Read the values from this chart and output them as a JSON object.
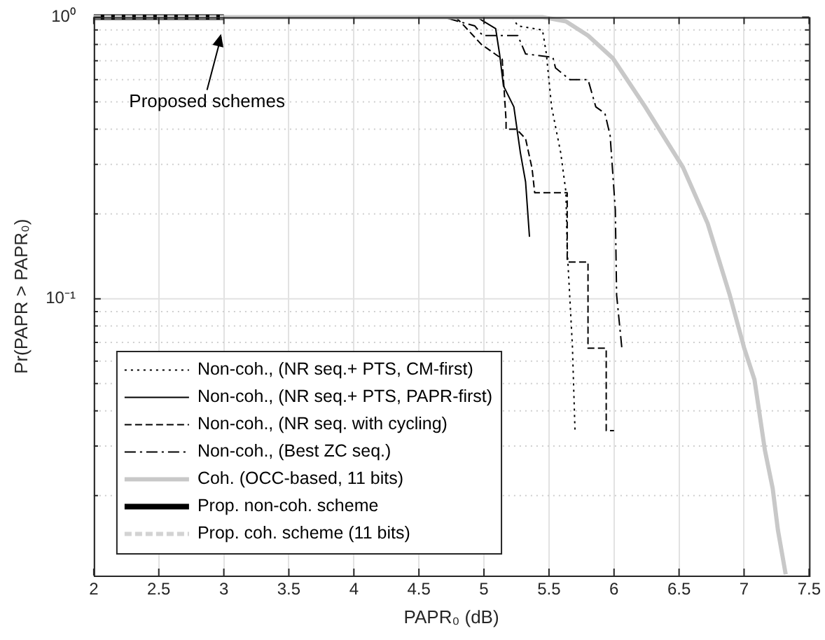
{
  "chart_data": {
    "type": "line",
    "xlabel": "PAPR₀ (dB)",
    "ylabel": "Pr(PAPR > PAPR₀)",
    "log": "y",
    "grid": true,
    "legend": "bottom left",
    "marker": "none",
    "xlim": [
      2,
      7.5
    ],
    "xticks": [
      2,
      2.5,
      3,
      3.5,
      4,
      4.5,
      5,
      5.5,
      6,
      6.5,
      7,
      7.5
    ],
    "ylim": [
      0.0104,
      1
    ],
    "yticks": [
      {
        "value": 0.02,
        "label": null
      },
      {
        "value": 0.03,
        "label": null
      },
      {
        "value": 0.04,
        "label": null
      },
      {
        "value": 0.05,
        "label": null
      },
      {
        "value": 0.06,
        "label": null
      },
      {
        "value": 0.07,
        "label": null
      },
      {
        "value": 0.08,
        "label": null
      },
      {
        "value": 0.09,
        "label": null
      },
      {
        "value": 0.1,
        "label": "10⁻¹"
      },
      {
        "value": 0.2,
        "label": null
      },
      {
        "value": 0.3,
        "label": null
      },
      {
        "value": 0.4,
        "label": null
      },
      {
        "value": 0.5,
        "label": null
      },
      {
        "value": 0.6,
        "label": null
      },
      {
        "value": 0.7,
        "label": null
      },
      {
        "value": 0.8,
        "label": null
      },
      {
        "value": 0.9,
        "label": null
      },
      {
        "value": 1,
        "label": "10⁰"
      }
    ],
    "annotations": [
      "Proposed schemes"
    ],
    "series": [
      {
        "name": "Non-coh., (NR seq.+ PTS, CM-first)",
        "color": "#000000",
        "line_style": "dotted",
        "x": [
          5.22,
          5.26,
          5.45,
          5.48,
          5.52,
          5.59,
          5.63,
          5.64,
          5.68,
          5.7
        ],
        "values": [
          1,
          0.93,
          0.9,
          0.74,
          0.48,
          0.33,
          0.24,
          0.15,
          0.068,
          0.034
        ]
      },
      {
        "name": "Non-coh., (NR seq.+ PTS, PAPR-first)",
        "color": "#000000",
        "line_style": "solid",
        "x": [
          4.95,
          4.99,
          5.09,
          5.12,
          5.15,
          5.23,
          5.28,
          5.32,
          5.35
        ],
        "values": [
          1,
          0.97,
          0.91,
          0.74,
          0.57,
          0.48,
          0.33,
          0.26,
          0.166
        ]
      },
      {
        "name": "Non-coh., (NR seq. with cycling)",
        "color": "#000000",
        "line_style": "dashed",
        "x": [
          4.78,
          4.83,
          4.98,
          5.14,
          5.17,
          5.17,
          5.25,
          5.32,
          5.37,
          5.39,
          5.64,
          5.64,
          5.8,
          5.8,
          5.94,
          5.94,
          6.0
        ],
        "values": [
          1,
          0.95,
          0.8,
          0.71,
          0.43,
          0.4,
          0.4,
          0.37,
          0.29,
          0.238,
          0.238,
          0.135,
          0.135,
          0.0667,
          0.0667,
          0.034,
          0.034
        ]
      },
      {
        "name": "Non-coh., (Best ZC seq.)",
        "color": "#000000",
        "line_style": "dashdot",
        "x": [
          4.72,
          4.93,
          4.99,
          5.26,
          5.32,
          5.53,
          5.55,
          5.66,
          5.8,
          5.86,
          5.93,
          5.97,
          6.01,
          6.02,
          6.06
        ],
        "values": [
          0.99,
          0.93,
          0.86,
          0.86,
          0.74,
          0.72,
          0.66,
          0.6,
          0.6,
          0.48,
          0.455,
          0.38,
          0.207,
          0.103,
          0.067
        ]
      },
      {
        "name": "Coh. (OCC-based, 11 bits)",
        "color": "#c8c8c8",
        "line_style": "solid",
        "x": [
          2,
          5.45,
          5.63,
          5.8,
          5.99,
          6.24,
          6.53,
          6.72,
          6.89,
          7.0,
          7.08,
          7.16,
          7.22,
          7.26,
          7.32
        ],
        "values": [
          1,
          1,
          0.966,
          0.86,
          0.715,
          0.48,
          0.293,
          0.185,
          0.103,
          0.067,
          0.0516,
          0.029,
          0.0212,
          0.0151,
          0.0105
        ]
      },
      {
        "name": "Prop. non-coh. scheme",
        "color": "#000000",
        "line_style": "solid",
        "x": [
          2,
          3
        ],
        "values": [
          1,
          1
        ]
      },
      {
        "name": "Prop. coh. scheme (11 bits)",
        "color": "#d3d3d3",
        "line_style": "dashed",
        "x": [
          2,
          3
        ],
        "values": [
          1,
          1
        ]
      }
    ]
  }
}
